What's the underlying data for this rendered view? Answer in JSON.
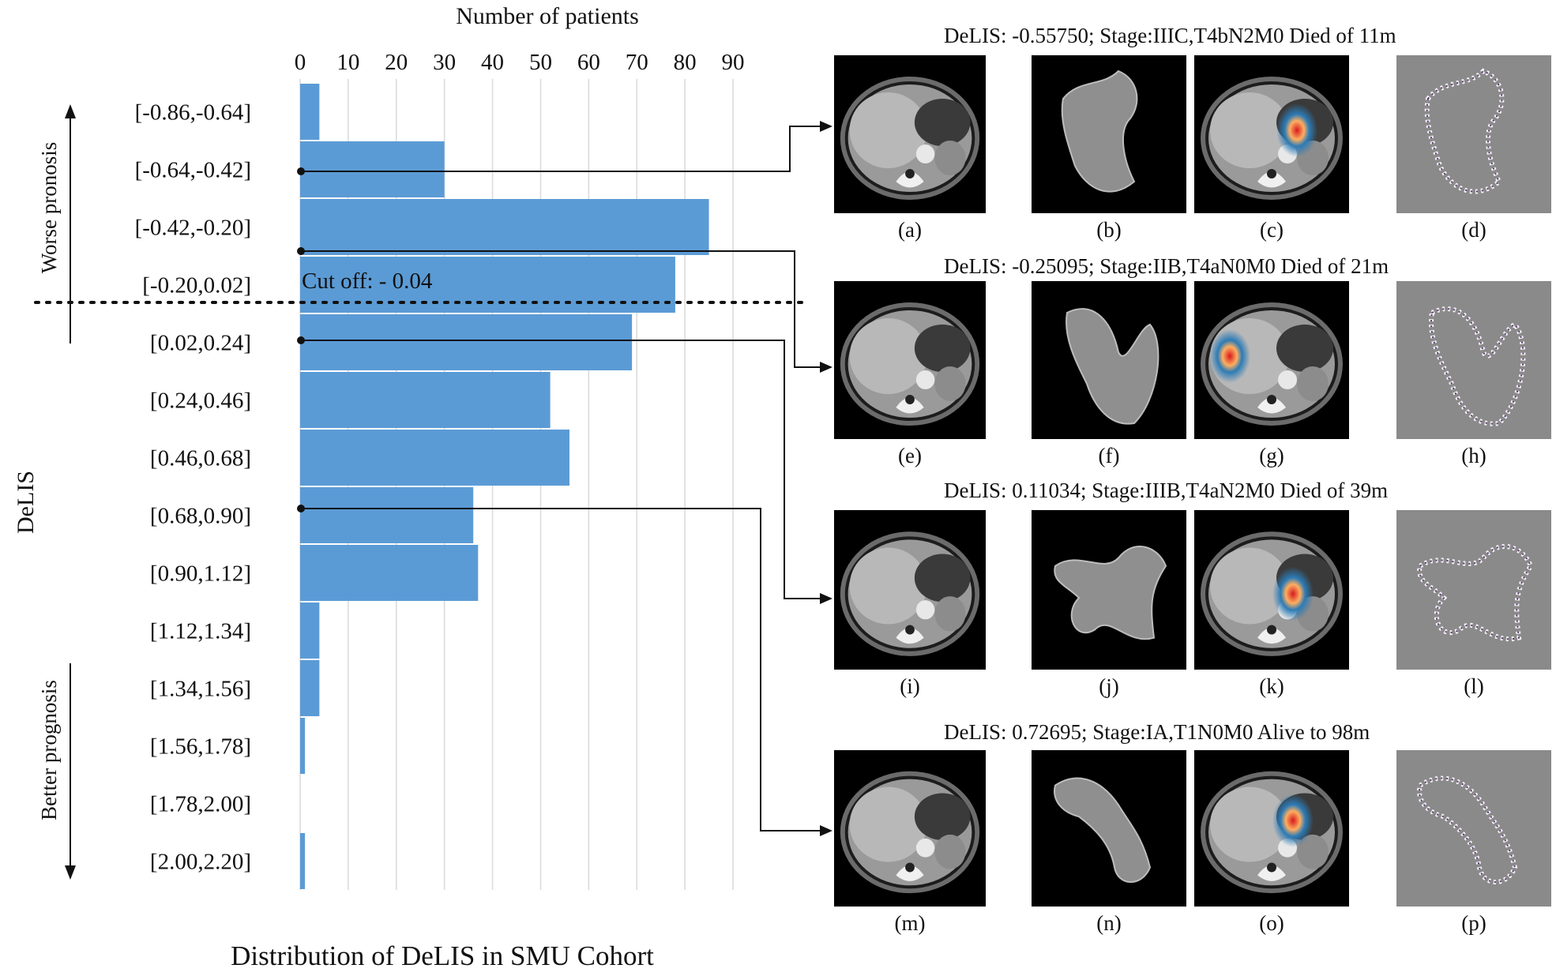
{
  "chart_data": {
    "type": "bar",
    "orientation": "horizontal",
    "title": "Distribution of DeLIS in SMU Cohort",
    "xlabel": "Number of patients",
    "ylabel": "DeLIS",
    "xlim": [
      0,
      90
    ],
    "xticks": [
      0,
      10,
      20,
      30,
      40,
      50,
      60,
      70,
      80,
      90
    ],
    "grid": true,
    "categories": [
      "[-0.86,-0.64]",
      "[-0.64,-0.42]",
      "[-0.42,-0.20]",
      "[-0.20,0.02]",
      "[0.02,0.24]",
      "[0.24,0.46]",
      "[0.46,0.68]",
      "[0.68,0.90]",
      "[0.90,1.12]",
      "[1.12,1.34]",
      "[1.34,1.56]",
      "[1.56,1.78]",
      "[1.78,2.00]",
      "[2.00,2.20]"
    ],
    "values": [
      4,
      30,
      85,
      78,
      69,
      52,
      56,
      36,
      37,
      4,
      4,
      1,
      0,
      1
    ],
    "bar_color": "#5b9bd5",
    "annotations": {
      "cutoff_label": "Cut off: - 0.04",
      "worse": "Worse pronosis",
      "better": "Better prognosis"
    }
  },
  "cases": [
    {
      "title": "DeLIS: -0.55750; Stage:IIIC,T4bN2M0  Died of 11m",
      "labels": [
        "(a)",
        "(b)",
        "(c)",
        "(d)"
      ]
    },
    {
      "title": "DeLIS: -0.25095; Stage:IIB,T4aN0M0  Died of 21m",
      "labels": [
        "(e)",
        "(f)",
        "(g)",
        "(h)"
      ]
    },
    {
      "title": "DeLIS: 0.11034; Stage:IIIB,T4aN2M0  Died of 39m",
      "labels": [
        "(i)",
        "(j)",
        "(k)",
        "(l)"
      ]
    },
    {
      "title": "DeLIS: 0.72695; Stage:IA,T1N0M0  Alive to 98m",
      "labels": [
        "(m)",
        "(n)",
        "(o)",
        "(p)"
      ]
    }
  ]
}
